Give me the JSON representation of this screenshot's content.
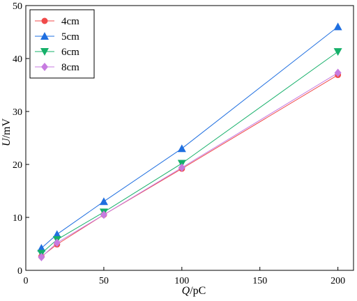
{
  "chart_data": {
    "type": "line",
    "title": "",
    "xlabel": {
      "var": "Q",
      "unit": "/pC"
    },
    "ylabel": {
      "var": "U",
      "unit": "/mV"
    },
    "xlim": [
      0,
      210
    ],
    "ylim": [
      0,
      50
    ],
    "xticks": [
      0,
      50,
      100,
      150,
      200
    ],
    "yticks": [
      0,
      10,
      20,
      30,
      40,
      50
    ],
    "grid": false,
    "legend_position": "top-left",
    "x": [
      10,
      20,
      50,
      100,
      200
    ],
    "series": [
      {
        "name": "4cm",
        "values": [
          2.6,
          4.9,
          10.5,
          19.2,
          36.9
        ],
        "color": "#f04a4a",
        "marker": "circle"
      },
      {
        "name": "5cm",
        "values": [
          4.2,
          6.8,
          13.0,
          23.0,
          46.0
        ],
        "color": "#1f6fe0",
        "marker": "triangle-up"
      },
      {
        "name": "6cm",
        "values": [
          3.2,
          5.8,
          11.0,
          20.2,
          41.3
        ],
        "color": "#16b06a",
        "marker": "triangle-down"
      },
      {
        "name": "8cm",
        "values": [
          2.5,
          5.2,
          10.5,
          19.4,
          37.3
        ],
        "color": "#c77be0",
        "marker": "diamond"
      }
    ]
  }
}
